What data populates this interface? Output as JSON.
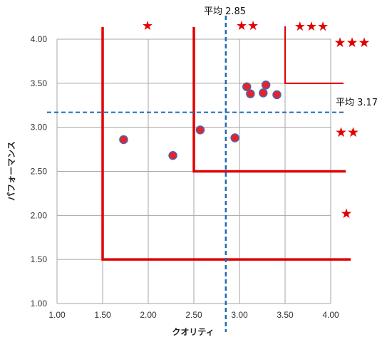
{
  "chart_data": {
    "type": "scatter",
    "xlabel": "クオリティ",
    "ylabel": "パフォーマンス",
    "xlim": [
      1.0,
      4.0
    ],
    "ylim": [
      1.0,
      4.0
    ],
    "x_ticks": [
      "1.00",
      "1.50",
      "2.00",
      "2.50",
      "3.00",
      "3.50",
      "4.00"
    ],
    "y_ticks": [
      "1.00",
      "1.50",
      "2.00",
      "2.50",
      "3.00",
      "3.50",
      "4.00"
    ],
    "grid": true,
    "points": [
      {
        "x": 1.73,
        "y": 2.86
      },
      {
        "x": 2.27,
        "y": 2.68
      },
      {
        "x": 2.57,
        "y": 2.97
      },
      {
        "x": 2.95,
        "y": 2.88
      },
      {
        "x": 3.08,
        "y": 3.46
      },
      {
        "x": 3.12,
        "y": 3.38
      },
      {
        "x": 3.26,
        "y": 3.39
      },
      {
        "x": 3.29,
        "y": 3.48
      },
      {
        "x": 3.41,
        "y": 3.37
      }
    ],
    "averages": {
      "x": {
        "value": 2.85,
        "label": "平均 2.85"
      },
      "y": {
        "value": 3.17,
        "label": "平均 3.17"
      }
    },
    "zones": [
      {
        "x_from": 1.5,
        "y_from": 1.5,
        "rank": "★"
      },
      {
        "x_from": 2.5,
        "y_from": 2.5,
        "rank": "★★"
      },
      {
        "x_from": 3.5,
        "y_from": 3.5,
        "rank": "★★★"
      }
    ],
    "rank_labels_top": [
      "★",
      "★★",
      "★★★"
    ],
    "rank_labels_right": [
      "★★★",
      "★★",
      "★"
    ],
    "colors": {
      "point_fill": "#e8212b",
      "point_stroke": "#4a66b0",
      "zone_line": "#e00000",
      "average_line": "#1f6bb5",
      "grid": "#a6a6a6",
      "star": "#e00000"
    }
  }
}
